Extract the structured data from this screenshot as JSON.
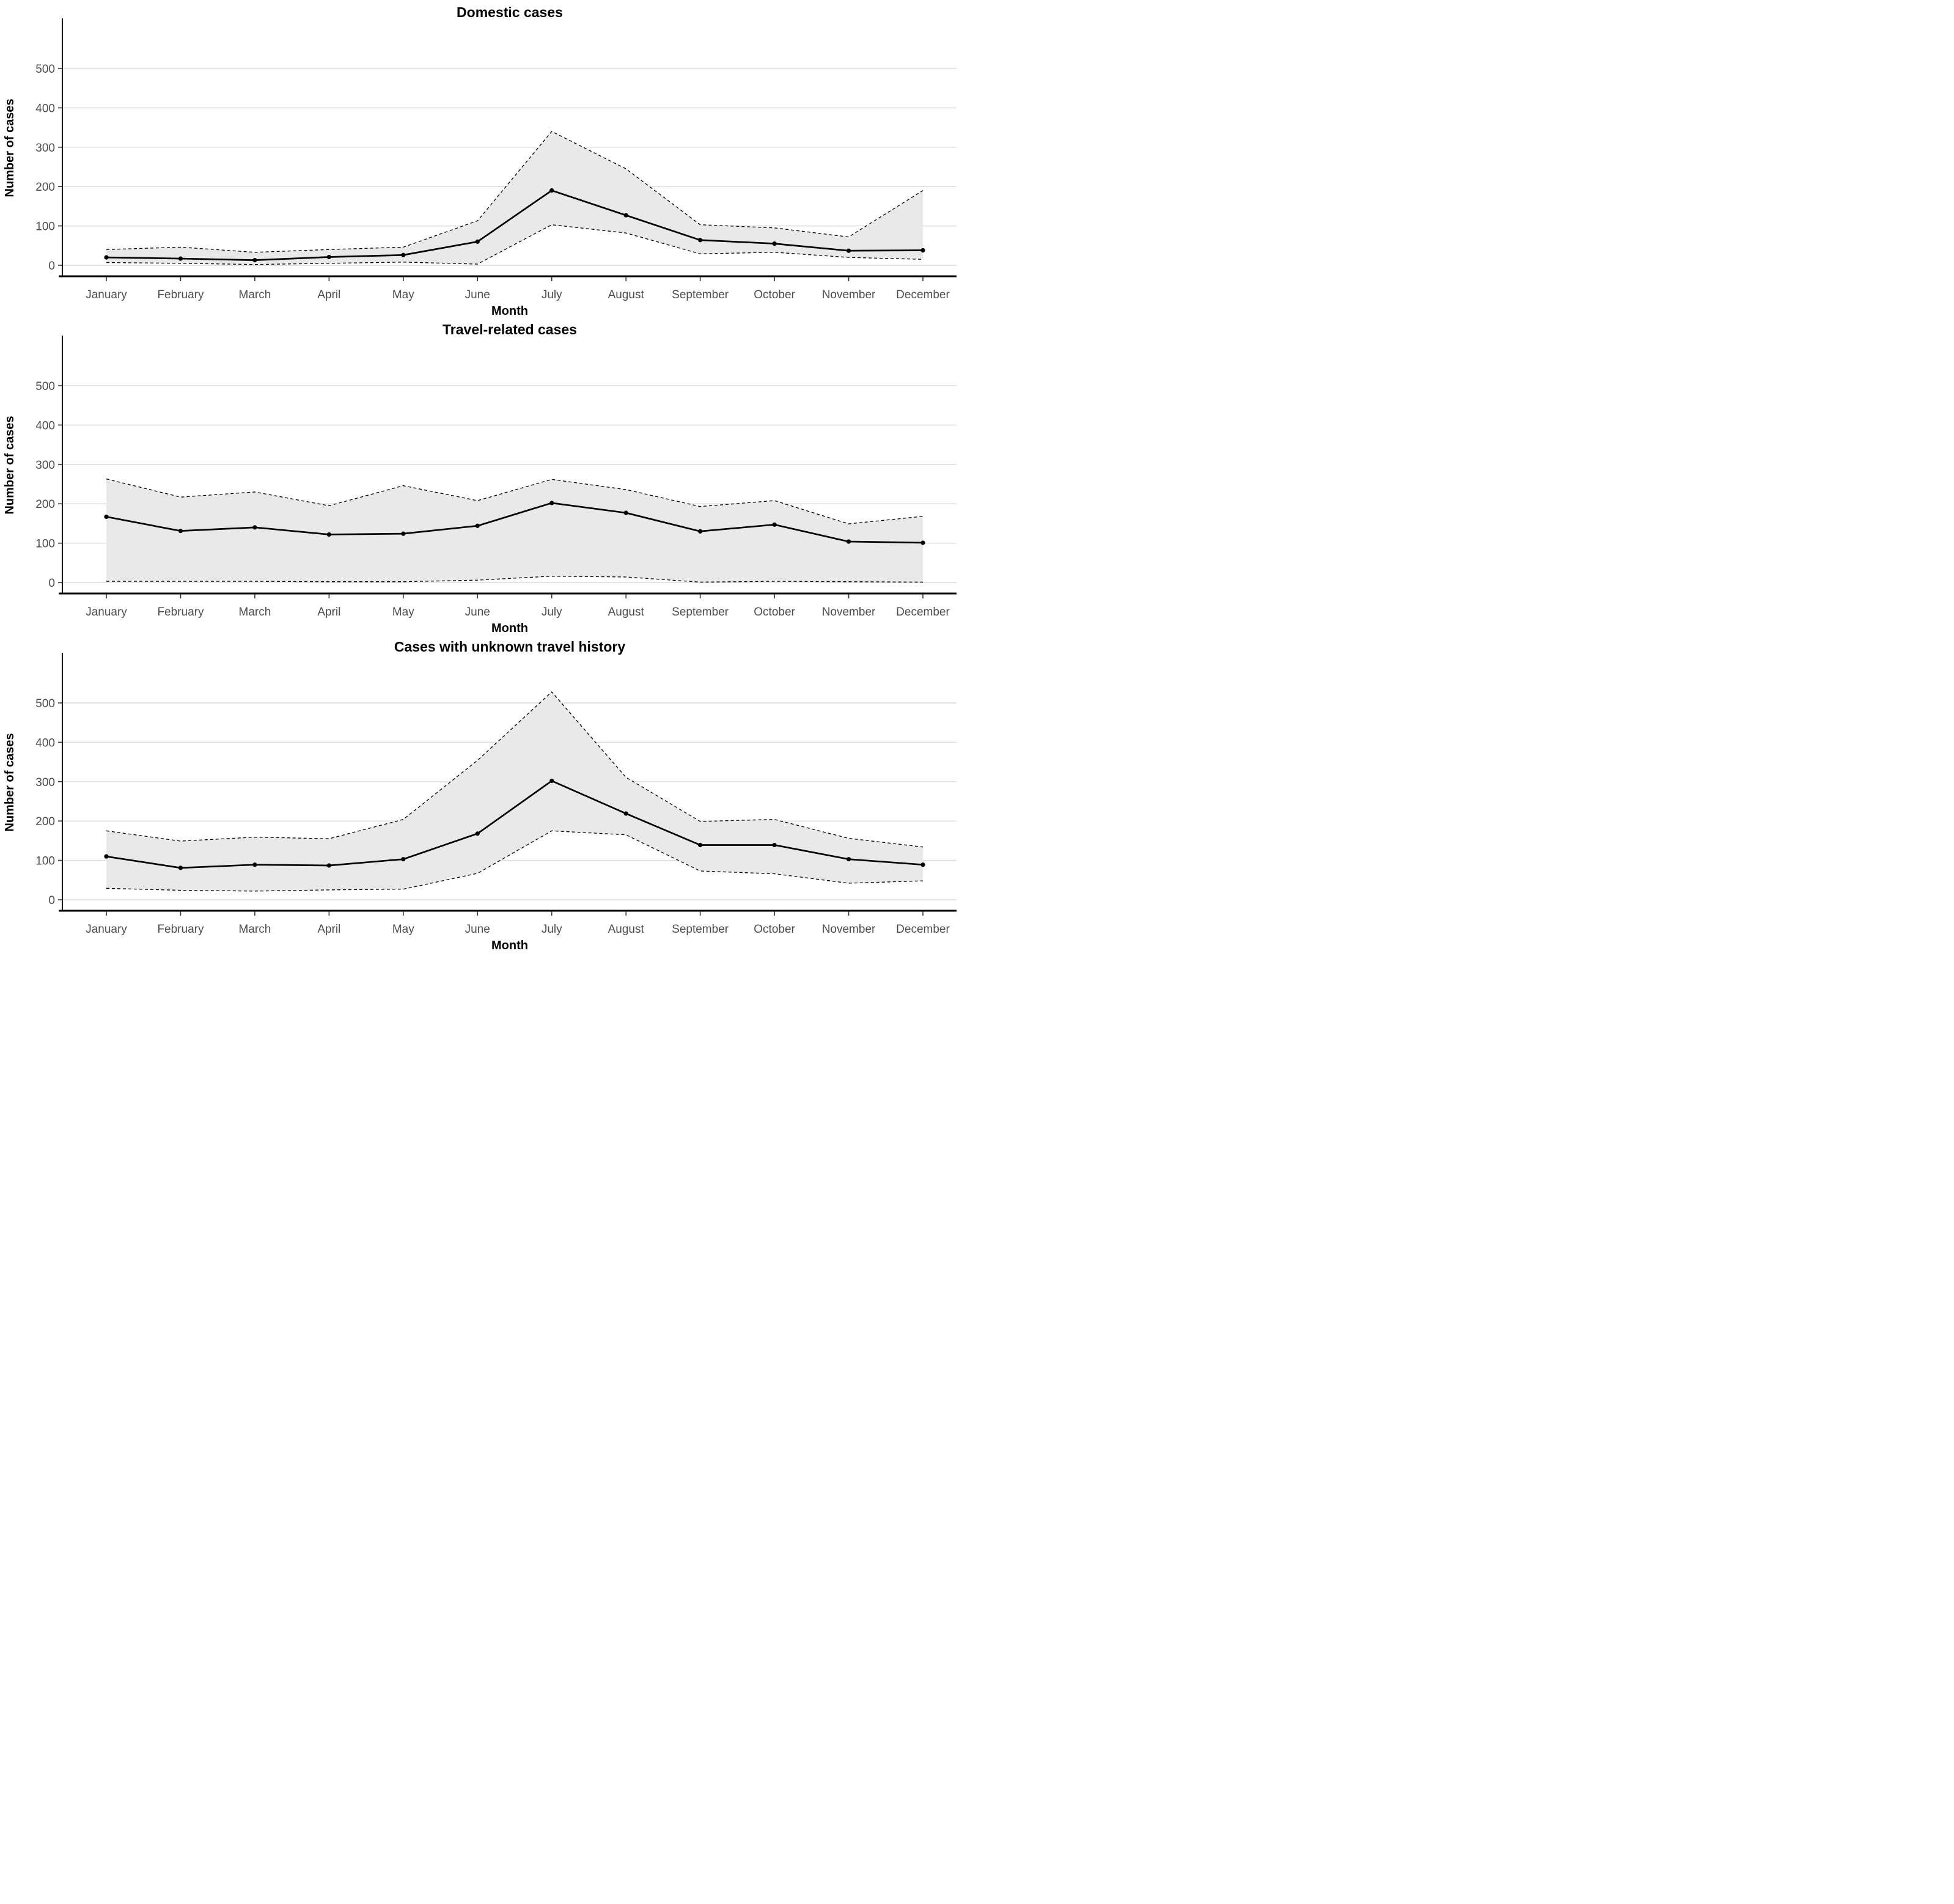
{
  "page": {
    "background": "#ffffff",
    "description_months_axis": "Month",
    "description_value_axis": "Number of cases"
  },
  "style": {
    "ribbon_fill": "#e9e9e9",
    "gridline_color": "#d9d9d9",
    "tick_text_color": "#4d4d4d",
    "tick_mark_color": "#333333",
    "axis_line_color": "#000000",
    "series_line_color": "#000000",
    "band_edge_color": "#000000"
  },
  "chart_data": [
    {
      "type": "line",
      "title": "Domestic cases",
      "xlabel": "Month",
      "ylabel": "Number of cases",
      "categories": [
        "January",
        "February",
        "March",
        "April",
        "May",
        "June",
        "July",
        "August",
        "September",
        "October",
        "November",
        "December"
      ],
      "yticks": [
        0,
        100,
        200,
        300,
        400,
        500
      ],
      "ylim": [
        0,
        560
      ],
      "grid": "horizontal-only",
      "legend": "none",
      "band_fill": "#e9e9e9",
      "series": [
        {
          "name": "point estimate",
          "style": "solid-with-points",
          "values": [
            20,
            17,
            13,
            21,
            26,
            60,
            190,
            127,
            64,
            55,
            37,
            38
          ]
        },
        {
          "name": "upper bound (dashed)",
          "style": "dashed",
          "values": [
            40,
            46,
            33,
            40,
            46,
            113,
            340,
            245,
            103,
            95,
            72,
            190
          ]
        },
        {
          "name": "lower bound (dashed)",
          "style": "dashed",
          "values": [
            7,
            5,
            2,
            5,
            8,
            3,
            103,
            82,
            29,
            33,
            20,
            15
          ]
        }
      ]
    },
    {
      "type": "line",
      "title": "Travel-related cases",
      "xlabel": "Month",
      "ylabel": "Number of cases",
      "categories": [
        "January",
        "February",
        "March",
        "April",
        "May",
        "June",
        "July",
        "August",
        "September",
        "October",
        "November",
        "December"
      ],
      "yticks": [
        0,
        100,
        200,
        300,
        400,
        500
      ],
      "ylim": [
        0,
        560
      ],
      "grid": "horizontal-only",
      "legend": "none",
      "band_fill": "#e9e9e9",
      "series": [
        {
          "name": "point estimate",
          "style": "solid-with-points",
          "values": [
            167,
            131,
            140,
            122,
            124,
            144,
            202,
            177,
            130,
            147,
            104,
            101
          ]
        },
        {
          "name": "upper bound (dashed)",
          "style": "dashed",
          "values": [
            263,
            217,
            230,
            195,
            246,
            208,
            262,
            236,
            193,
            208,
            149,
            168
          ]
        },
        {
          "name": "lower bound (dashed)",
          "style": "dashed",
          "values": [
            3,
            3,
            3,
            2,
            2,
            6,
            16,
            14,
            1,
            3,
            2,
            1
          ]
        }
      ]
    },
    {
      "type": "line",
      "title": "Cases with unknown travel history",
      "xlabel": "Month",
      "ylabel": "Number of cases",
      "categories": [
        "January",
        "February",
        "March",
        "April",
        "May",
        "June",
        "July",
        "August",
        "September",
        "October",
        "November",
        "December"
      ],
      "yticks": [
        0,
        100,
        200,
        300,
        400,
        500
      ],
      "ylim": [
        0,
        560
      ],
      "grid": "horizontal-only",
      "legend": "none",
      "band_fill": "#e9e9e9",
      "series": [
        {
          "name": "point estimate",
          "style": "solid-with-points",
          "values": [
            110,
            81,
            89,
            87,
            103,
            168,
            302,
            219,
            139,
            139,
            103,
            89
          ]
        },
        {
          "name": "upper bound (dashed)",
          "style": "dashed",
          "values": [
            175,
            149,
            159,
            155,
            204,
            354,
            528,
            311,
            199,
            204,
            156,
            134
          ]
        },
        {
          "name": "lower bound (dashed)",
          "style": "dashed",
          "values": [
            29,
            24,
            22,
            25,
            27,
            67,
            175,
            165,
            73,
            66,
            42,
            48
          ]
        }
      ]
    }
  ]
}
